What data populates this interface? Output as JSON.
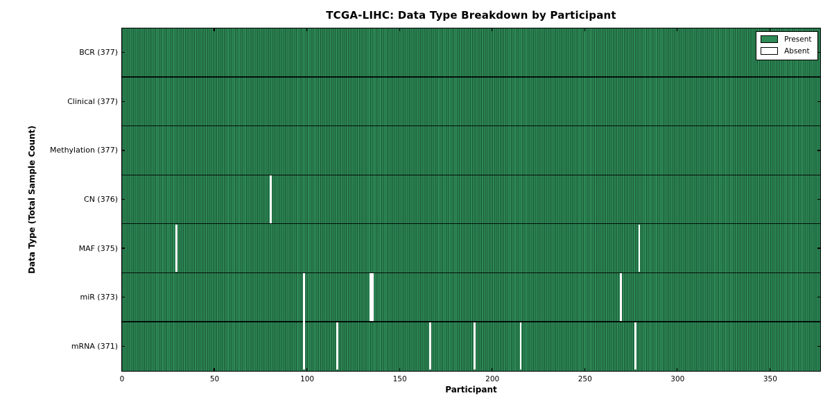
{
  "chart_data": {
    "type": "heatmap",
    "title": "TCGA-LIHC: Data Type Breakdown by Participant",
    "xlabel": "Participant",
    "ylabel": "Data Type (Total Sample Count)",
    "xlim": [
      0,
      377
    ],
    "x_ticks": [
      0,
      50,
      100,
      150,
      200,
      250,
      300,
      350
    ],
    "n_participants": 377,
    "grid": false,
    "legend_position": "upper-right",
    "legend": [
      {
        "label": "Present",
        "swatch_color": "#2e8b57"
      },
      {
        "label": "Absent",
        "swatch_color": "#ffffff"
      }
    ],
    "rows": [
      {
        "label": "BCR (377)",
        "data_type": "BCR",
        "total_samples": 377,
        "absent_participants": []
      },
      {
        "label": "Clinical (377)",
        "data_type": "Clinical",
        "total_samples": 377,
        "absent_participants": []
      },
      {
        "label": "Methylation (377)",
        "data_type": "Methylation",
        "total_samples": 377,
        "absent_participants": []
      },
      {
        "label": "CN (376)",
        "data_type": "CN",
        "total_samples": 376,
        "absent_participants": [
          80
        ]
      },
      {
        "label": "MAF (375)",
        "data_type": "MAF",
        "total_samples": 375,
        "absent_participants": [
          29,
          279
        ]
      },
      {
        "label": "miR (373)",
        "data_type": "miR",
        "total_samples": 373,
        "absent_participants": [
          98,
          134,
          135,
          269
        ]
      },
      {
        "label": "mRNA (371)",
        "data_type": "mRNA",
        "total_samples": 371,
        "absent_participants": [
          98,
          116,
          166,
          190,
          215,
          277
        ]
      }
    ],
    "colors": {
      "present": "#2e8b57",
      "present_edge": "#1b5534",
      "absent": "#ffffff",
      "spine": "#000000"
    }
  }
}
